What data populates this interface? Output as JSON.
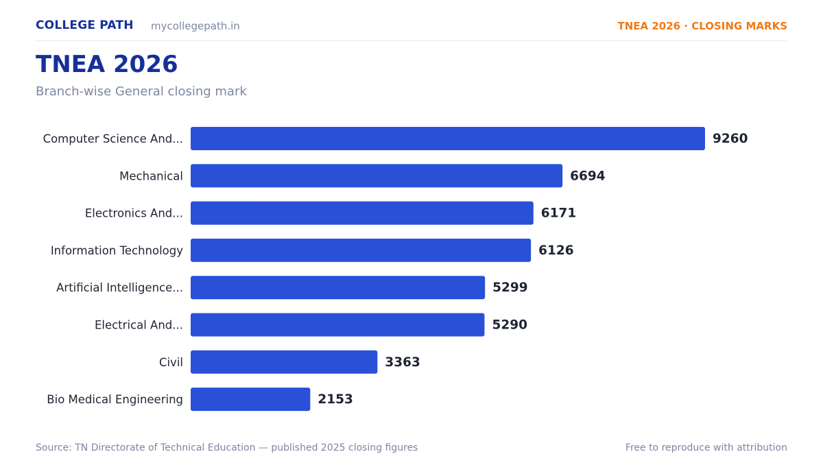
{
  "header": {
    "brand": "COLLEGE PATH",
    "site": "mycollegepath.in",
    "tag": "TNEA 2026 · CLOSING MARKS"
  },
  "title": "TNEA 2026",
  "subtitle": "Branch-wise General closing mark",
  "footer": {
    "source": "Source: TN Directorate of Technical Education — published 2025 closing figures",
    "license": "Free to reproduce with attribution"
  },
  "colors": {
    "bar": "#2b50d8",
    "label": "#1f2433",
    "value": "#1f2433"
  },
  "chart_data": {
    "type": "bar",
    "orientation": "horizontal",
    "categories": [
      "Computer Science And...",
      "Mechanical",
      "Electronics And...",
      "Information Technology",
      "Artificial Intelligence...",
      "Electrical And...",
      "Civil",
      "Bio Medical Engineering"
    ],
    "values": [
      9260,
      6694,
      6171,
      6126,
      5299,
      5290,
      3363,
      2153
    ],
    "xlim": [
      0,
      9260
    ],
    "grid": false,
    "legend": "none"
  }
}
